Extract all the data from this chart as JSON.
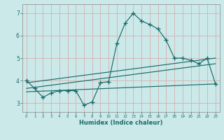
{
  "xlabel": "Humidex (Indice chaleur)",
  "xlim": [
    -0.5,
    23.5
  ],
  "ylim": [
    2.6,
    7.4
  ],
  "yticks": [
    3,
    4,
    5,
    6,
    7
  ],
  "xticks": [
    0,
    1,
    2,
    3,
    4,
    5,
    6,
    7,
    8,
    9,
    10,
    11,
    12,
    13,
    14,
    15,
    16,
    17,
    18,
    19,
    20,
    21,
    22,
    23
  ],
  "bg_color": "#cce9e9",
  "line_color": "#1a6b6b",
  "grid_color": "#b8d8d8",
  "main_line": {
    "x": [
      0,
      1,
      2,
      3,
      4,
      5,
      6,
      7,
      8,
      9,
      10,
      11,
      12,
      13,
      14,
      15,
      16,
      17,
      18,
      19,
      20,
      21,
      22,
      23
    ],
    "y": [
      4.0,
      3.65,
      3.25,
      3.45,
      3.55,
      3.55,
      3.55,
      2.9,
      3.05,
      3.9,
      3.95,
      5.65,
      6.55,
      7.0,
      6.65,
      6.5,
      6.3,
      5.8,
      5.0,
      5.0,
      4.9,
      4.75,
      5.0,
      3.85
    ]
  },
  "line2": {
    "x": [
      0,
      23
    ],
    "y": [
      3.9,
      5.0
    ]
  },
  "line3": {
    "x": [
      0,
      23
    ],
    "y": [
      3.65,
      4.75
    ]
  },
  "line4": {
    "x": [
      0,
      23
    ],
    "y": [
      3.5,
      3.85
    ]
  }
}
